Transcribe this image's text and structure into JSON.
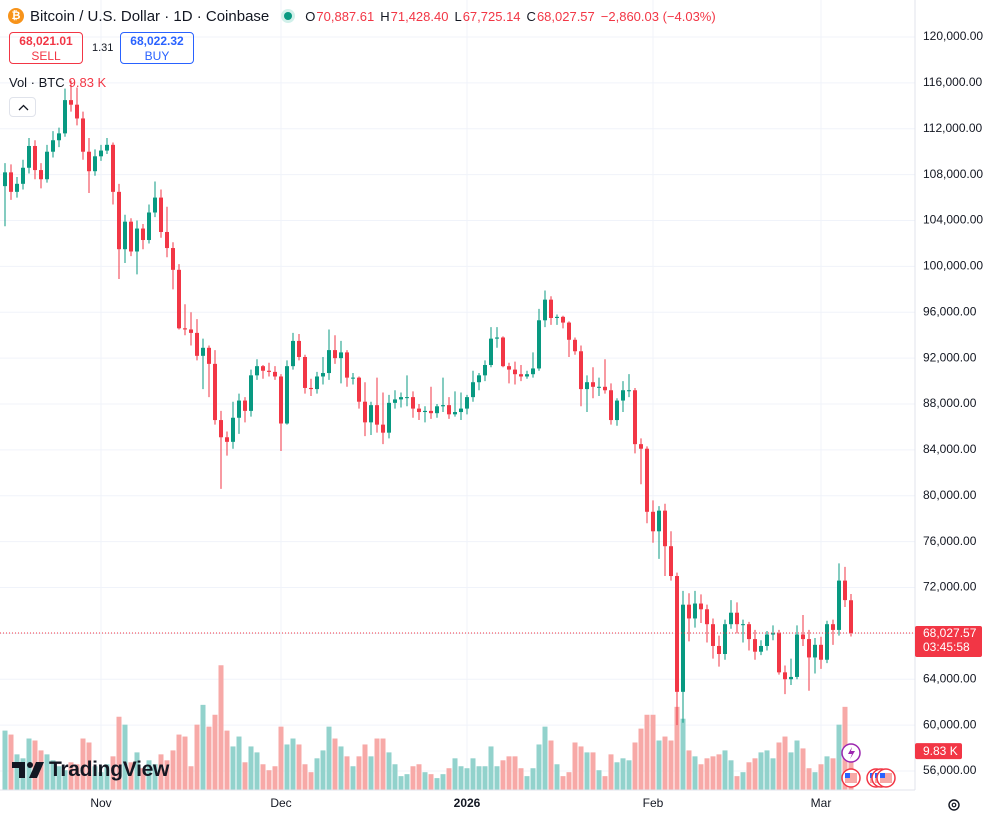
{
  "chart_data": {
    "type": "candlestick",
    "title": "Bitcoin / U.S. Dollar · 1D · Coinbase",
    "ohlc_legend": [
      {
        "key": "O",
        "value": "70,887.61"
      },
      {
        "key": "H",
        "value": "71,428.40"
      },
      {
        "key": "L",
        "value": "67,725.14"
      },
      {
        "key": "C",
        "value": "68,027.57"
      }
    ],
    "change": "−2,860.03 (−4.03%)",
    "sell": {
      "price": "68,021.01",
      "label": "SELL"
    },
    "spread": "1.31",
    "buy": {
      "price": "68,022.32",
      "label": "BUY"
    },
    "volume_title": "Vol · BTC",
    "last_volume_label": "9.83 K",
    "last_price_label": "68,027.57",
    "countdown": "03:45:58",
    "brand": "TradingView",
    "up_color": "#089981",
    "down_color": "#f23645",
    "volume_up_color": "#92d2cc",
    "volume_down_color": "#f7a9a7",
    "grid": true,
    "categories": [
      null,
      null,
      null,
      null,
      null,
      null,
      null,
      null,
      null,
      null,
      null,
      null,
      null,
      null,
      null,
      null,
      "Nov",
      null,
      null,
      null,
      null,
      null,
      null,
      null,
      null,
      null,
      null,
      null,
      null,
      null,
      null,
      null,
      null,
      null,
      null,
      null,
      null,
      null,
      null,
      null,
      null,
      null,
      null,
      null,
      null,
      null,
      "Dec",
      null,
      null,
      null,
      null,
      null,
      null,
      null,
      null,
      null,
      null,
      null,
      null,
      null,
      null,
      null,
      null,
      null,
      null,
      null,
      null,
      null,
      null,
      null,
      null,
      null,
      null,
      null,
      null,
      null,
      null,
      "2026",
      null,
      null,
      null,
      null,
      null,
      null,
      null,
      null,
      null,
      null,
      null,
      null,
      null,
      null,
      null,
      null,
      null,
      null,
      null,
      null,
      null,
      null,
      null,
      null,
      null,
      null,
      null,
      null,
      null,
      null,
      "Feb",
      null,
      null,
      null,
      null,
      null,
      null,
      null,
      null,
      null,
      null,
      null,
      null,
      null,
      null,
      null,
      null,
      null,
      null,
      null,
      null,
      null,
      null,
      null,
      null,
      null,
      null,
      null,
      "Mar",
      null,
      null,
      null,
      null,
      null
    ],
    "ohlc": [
      [
        107000,
        109000,
        103500,
        108200
      ],
      [
        108200,
        108900,
        105800,
        106500
      ],
      [
        106500,
        107800,
        106000,
        107200
      ],
      [
        107200,
        109300,
        106700,
        108600
      ],
      [
        108600,
        111200,
        108100,
        110500
      ],
      [
        110500,
        111000,
        107600,
        108400
      ],
      [
        108400,
        109000,
        106800,
        107600
      ],
      [
        107600,
        110600,
        107300,
        110000
      ],
      [
        110000,
        111800,
        109500,
        111000
      ],
      [
        111000,
        112100,
        110400,
        111600
      ],
      [
        111600,
        115500,
        111300,
        114500
      ],
      [
        114500,
        116200,
        113500,
        114100
      ],
      [
        114100,
        115600,
        112300,
        112900
      ],
      [
        112900,
        113500,
        109300,
        110000
      ],
      [
        110000,
        111200,
        106400,
        108300
      ],
      [
        108300,
        110200,
        107900,
        109600
      ],
      [
        109600,
        110600,
        109200,
        110100
      ],
      [
        110100,
        111200,
        109800,
        110600
      ],
      [
        110600,
        110800,
        105400,
        106500
      ],
      [
        106500,
        107200,
        98900,
        101500
      ],
      [
        101500,
        104500,
        100300,
        103900
      ],
      [
        103900,
        104200,
        100900,
        101300
      ],
      [
        101300,
        104000,
        99300,
        103300
      ],
      [
        103300,
        103700,
        101500,
        102300
      ],
      [
        102300,
        105400,
        102000,
        104700
      ],
      [
        104700,
        107400,
        104300,
        106000
      ],
      [
        106000,
        106700,
        102500,
        103000
      ],
      [
        103000,
        105200,
        100800,
        101600
      ],
      [
        101600,
        102100,
        98000,
        99700
      ],
      [
        99700,
        100200,
        94500,
        94600
      ],
      [
        94600,
        96700,
        94000,
        94500
      ],
      [
        94500,
        96000,
        93100,
        94200
      ],
      [
        94200,
        95400,
        91800,
        92200
      ],
      [
        92200,
        93700,
        89300,
        92900
      ],
      [
        92900,
        93100,
        88600,
        91500
      ],
      [
        91500,
        92700,
        86200,
        86600
      ],
      [
        86600,
        87400,
        80600,
        85100
      ],
      [
        85100,
        85600,
        83500,
        84700
      ],
      [
        84700,
        88200,
        84100,
        86800
      ],
      [
        86800,
        88900,
        85400,
        88300
      ],
      [
        88300,
        88600,
        86400,
        87400
      ],
      [
        87400,
        91000,
        86900,
        90500
      ],
      [
        90500,
        91900,
        90100,
        91300
      ],
      [
        91300,
        91400,
        90200,
        90900
      ],
      [
        90900,
        91600,
        90400,
        90800
      ],
      [
        90800,
        91300,
        90100,
        90400
      ],
      [
        90400,
        90600,
        83900,
        86300
      ],
      [
        86300,
        91800,
        86200,
        91300
      ],
      [
        91300,
        94200,
        91000,
        93500
      ],
      [
        93500,
        94100,
        91800,
        92100
      ],
      [
        92100,
        92300,
        88900,
        89400
      ],
      [
        89400,
        90200,
        88700,
        89300
      ],
      [
        89300,
        90800,
        88900,
        90400
      ],
      [
        90400,
        92100,
        89700,
        90700
      ],
      [
        90700,
        94500,
        90100,
        92700
      ],
      [
        92700,
        94000,
        91500,
        92000
      ],
      [
        92000,
        93500,
        89800,
        92500
      ],
      [
        92500,
        92700,
        89500,
        90300
      ],
      [
        90300,
        90700,
        89700,
        90300
      ],
      [
        90300,
        90400,
        87600,
        88200
      ],
      [
        88200,
        89900,
        85200,
        86400
      ],
      [
        86400,
        88200,
        85300,
        87900
      ],
      [
        87900,
        90300,
        85500,
        86200
      ],
      [
        86200,
        89000,
        84500,
        85500
      ],
      [
        85500,
        88800,
        85000,
        88100
      ],
      [
        88100,
        89200,
        87600,
        88400
      ],
      [
        88400,
        89000,
        87700,
        88600
      ],
      [
        88600,
        90500,
        87800,
        88600
      ],
      [
        88600,
        89100,
        86800,
        87600
      ],
      [
        87600,
        88000,
        86600,
        87300
      ],
      [
        87300,
        87800,
        86400,
        87400
      ],
      [
        87400,
        89500,
        86700,
        87200
      ],
      [
        87200,
        88000,
        86800,
        87800
      ],
      [
        87800,
        90300,
        87300,
        87900
      ],
      [
        87900,
        88600,
        86700,
        87100
      ],
      [
        87100,
        89100,
        86900,
        87300
      ],
      [
        87300,
        89000,
        86600,
        87600
      ],
      [
        87600,
        88800,
        87100,
        88600
      ],
      [
        88600,
        90900,
        88200,
        89900
      ],
      [
        89900,
        90700,
        89200,
        90500
      ],
      [
        90500,
        91800,
        90000,
        91400
      ],
      [
        91400,
        94700,
        91200,
        93700
      ],
      [
        93700,
        94700,
        92900,
        93800
      ],
      [
        93800,
        93900,
        91200,
        91300
      ],
      [
        91300,
        91600,
        89800,
        91000
      ],
      [
        91000,
        91700,
        89700,
        90600
      ],
      [
        90600,
        91400,
        90000,
        90400
      ],
      [
        90400,
        90900,
        90200,
        90600
      ],
      [
        90600,
        92500,
        90300,
        91100
      ],
      [
        91100,
        96300,
        90900,
        95300
      ],
      [
        95300,
        97900,
        94700,
        97100
      ],
      [
        97100,
        97400,
        94900,
        95500
      ],
      [
        95500,
        95800,
        94900,
        95600
      ],
      [
        95600,
        95700,
        94600,
        95100
      ],
      [
        95100,
        95200,
        92100,
        93600
      ],
      [
        93600,
        93800,
        92300,
        92600
      ],
      [
        92600,
        93100,
        87800,
        89300
      ],
      [
        89300,
        90500,
        87300,
        89900
      ],
      [
        89900,
        91200,
        88500,
        89500
      ],
      [
        89500,
        90300,
        88700,
        89500
      ],
      [
        89500,
        91900,
        88900,
        89200
      ],
      [
        89200,
        89800,
        86200,
        86600
      ],
      [
        86600,
        88500,
        86100,
        88300
      ],
      [
        88300,
        90000,
        87300,
        89200
      ],
      [
        89200,
        90600,
        88600,
        89200
      ],
      [
        89200,
        89400,
        83700,
        84500
      ],
      [
        84500,
        85000,
        81000,
        84100
      ],
      [
        84100,
        84300,
        77600,
        78600
      ],
      [
        78600,
        79600,
        75900,
        76900
      ],
      [
        76900,
        79100,
        74500,
        78700
      ],
      [
        78700,
        79300,
        73000,
        75600
      ],
      [
        75600,
        76900,
        72600,
        73000
      ],
      [
        73000,
        73300,
        60000,
        62900
      ],
      [
        62900,
        71700,
        60200,
        70500
      ],
      [
        70500,
        71500,
        67300,
        69300
      ],
      [
        69300,
        71700,
        68500,
        70600
      ],
      [
        70600,
        71400,
        68900,
        70100
      ],
      [
        70100,
        70500,
        67200,
        68800
      ],
      [
        68800,
        69300,
        65800,
        66900
      ],
      [
        66900,
        67800,
        65100,
        66200
      ],
      [
        66200,
        69200,
        65700,
        68800
      ],
      [
        68800,
        70900,
        68400,
        69800
      ],
      [
        69800,
        70700,
        68000,
        68800
      ],
      [
        68800,
        69200,
        67200,
        68800
      ],
      [
        68800,
        69000,
        66500,
        67500
      ],
      [
        67500,
        68300,
        65700,
        66400
      ],
      [
        66400,
        67400,
        66100,
        66900
      ],
      [
        66900,
        68200,
        66500,
        67900
      ],
      [
        67900,
        68700,
        67400,
        68000
      ],
      [
        68000,
        68300,
        64400,
        64600
      ],
      [
        64600,
        65200,
        62700,
        64000
      ],
      [
        64000,
        65800,
        63500,
        64200
      ],
      [
        64200,
        68700,
        64000,
        67900
      ],
      [
        67900,
        69600,
        66900,
        67500
      ],
      [
        67500,
        68300,
        63000,
        65900
      ],
      [
        65900,
        67600,
        64500,
        67000
      ],
      [
        67000,
        67700,
        64900,
        65700
      ],
      [
        65700,
        69100,
        65400,
        68800
      ],
      [
        68800,
        69200,
        67000,
        68300
      ],
      [
        68300,
        74100,
        67800,
        72600
      ],
      [
        72600,
        73800,
        70300,
        70900
      ],
      [
        70887.61,
        71428.4,
        67725.14,
        68027.57
      ]
    ],
    "volume": [
      15000,
      14000,
      9000,
      8000,
      13000,
      12500,
      10000,
      9000,
      7500,
      6000,
      5000,
      7000,
      6500,
      13000,
      12000,
      6000,
      4500,
      6500,
      8500,
      18500,
      16500,
      7000,
      9500,
      5500,
      7500,
      6500,
      9000,
      7500,
      10000,
      14000,
      13500,
      6000,
      16500,
      21500,
      16000,
      19000,
      31500,
      15000,
      11000,
      13500,
      7000,
      11000,
      9500,
      6500,
      5000,
      6000,
      16000,
      11500,
      13000,
      11500,
      6500,
      4500,
      8000,
      10000,
      16000,
      13000,
      11000,
      8500,
      6000,
      8500,
      11500,
      8500,
      13000,
      13000,
      9500,
      6500,
      3500,
      4000,
      6000,
      6500,
      4500,
      4000,
      3000,
      4000,
      5500,
      8000,
      6000,
      5500,
      8000,
      6000,
      6000,
      11000,
      6000,
      7500,
      8500,
      8500,
      5500,
      3500,
      5500,
      11500,
      16000,
      12500,
      6500,
      3500,
      4500,
      12000,
      11000,
      9500,
      9500,
      5000,
      3500,
      9000,
      7000,
      8000,
      7500,
      12000,
      15500,
      19000,
      19000,
      12500,
      13500,
      12500,
      21000,
      18000,
      10000,
      8500,
      6500,
      8000,
      8500,
      9000,
      10000,
      7500,
      3500,
      4500,
      7000,
      8000,
      9500,
      10000,
      8000,
      12000,
      13500,
      9500,
      12500,
      10500,
      5500,
      4500,
      6500,
      8500,
      8000,
      16500,
      21000,
      9830
    ],
    "volume_lim": [
      0,
      50000
    ],
    "ylim": [
      54340,
      123230
    ],
    "yticks": [
      {
        "value": 56000,
        "label": "56,000.00"
      },
      {
        "value": 60000,
        "label": "60,000.00"
      },
      {
        "value": 64000,
        "label": "64,000.00"
      },
      {
        "value": 68000,
        "label": "68,000.00"
      },
      {
        "value": 72000,
        "label": "72,000.00"
      },
      {
        "value": 76000,
        "label": "76,000.00"
      },
      {
        "value": 80000,
        "label": "80,000.00"
      },
      {
        "value": 84000,
        "label": "84,000.00"
      },
      {
        "value": 88000,
        "label": "88,000.00"
      },
      {
        "value": 92000,
        "label": "92,000.00"
      },
      {
        "value": 96000,
        "label": "96,000.00"
      },
      {
        "value": 100000,
        "label": "100,000.00"
      },
      {
        "value": 104000,
        "label": "104,000.00"
      },
      {
        "value": 108000,
        "label": "108,000.00"
      },
      {
        "value": 112000,
        "label": "112,000.00"
      },
      {
        "value": 116000,
        "label": "116,000.00"
      },
      {
        "value": 120000,
        "label": "120,000.00"
      }
    ]
  }
}
